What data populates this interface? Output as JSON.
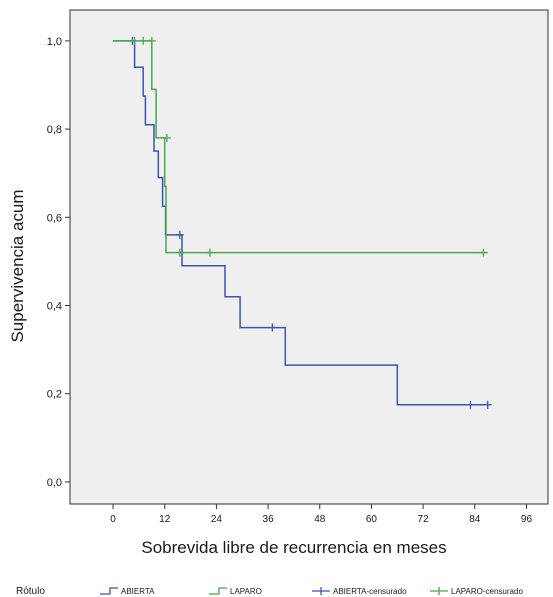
{
  "chart_data": {
    "type": "line",
    "subtype": "step",
    "xlabel": "Sobrevida libre de recurrencia en meses",
    "ylabel": "Supervivencia acum",
    "xlim": [
      -10,
      101
    ],
    "ylim": [
      -0.05,
      1.07
    ],
    "x_ticks": [
      0,
      12,
      24,
      36,
      48,
      60,
      72,
      84,
      96
    ],
    "x_tick_labels": [
      "0",
      "12",
      "24",
      "36",
      "48",
      "60",
      "72",
      "84",
      "96"
    ],
    "y_ticks": [
      0.0,
      0.2,
      0.4,
      0.6,
      0.8,
      1.0
    ],
    "y_tick_labels": [
      "0,0",
      "0,2",
      "0,4",
      "0,6",
      "0,8",
      "1,0"
    ],
    "grid": false,
    "plot_background": "#efefef",
    "legend_position": "bottom",
    "legend": {
      "title": "Rótulo",
      "entries": [
        "ABIERTA",
        "LAPARO",
        "ABIERTA-censurado",
        "LAPARO-censurado"
      ]
    },
    "series": [
      {
        "name": "ABIERTA",
        "color": "#3a55b4",
        "points": [
          [
            0,
            1.0
          ],
          [
            5,
            1.0
          ],
          [
            5,
            0.94
          ],
          [
            7,
            0.94
          ],
          [
            7,
            0.875
          ],
          [
            7.5,
            0.875
          ],
          [
            7.5,
            0.81
          ],
          [
            9.5,
            0.81
          ],
          [
            9.5,
            0.75
          ],
          [
            10.5,
            0.75
          ],
          [
            10.5,
            0.69
          ],
          [
            11.5,
            0.69
          ],
          [
            11.5,
            0.625
          ],
          [
            12.2,
            0.625
          ],
          [
            12.2,
            0.56
          ],
          [
            16,
            0.56
          ],
          [
            16,
            0.49
          ],
          [
            26,
            0.49
          ],
          [
            26,
            0.42
          ],
          [
            29.5,
            0.42
          ],
          [
            29.5,
            0.35
          ],
          [
            40,
            0.35
          ],
          [
            40,
            0.265
          ],
          [
            66,
            0.265
          ],
          [
            66,
            0.175
          ],
          [
            87,
            0.175
          ]
        ],
        "censored": [
          [
            4.5,
            1.0
          ],
          [
            15.5,
            0.56
          ],
          [
            37,
            0.35
          ],
          [
            83,
            0.175
          ],
          [
            87,
            0.175
          ]
        ]
      },
      {
        "name": "LAPARO",
        "color": "#4aa84e",
        "points": [
          [
            0,
            1.0
          ],
          [
            9,
            1.0
          ],
          [
            9,
            0.89
          ],
          [
            10,
            0.89
          ],
          [
            10,
            0.78
          ],
          [
            12,
            0.78
          ],
          [
            12,
            0.67
          ],
          [
            12.3,
            0.67
          ],
          [
            12.3,
            0.52
          ],
          [
            87,
            0.52
          ]
        ],
        "censored": [
          [
            5,
            1.0
          ],
          [
            7,
            1.0
          ],
          [
            9,
            1.0
          ],
          [
            12.5,
            0.78
          ],
          [
            15.5,
            0.52
          ],
          [
            22.5,
            0.52
          ],
          [
            86,
            0.52
          ]
        ]
      }
    ]
  }
}
